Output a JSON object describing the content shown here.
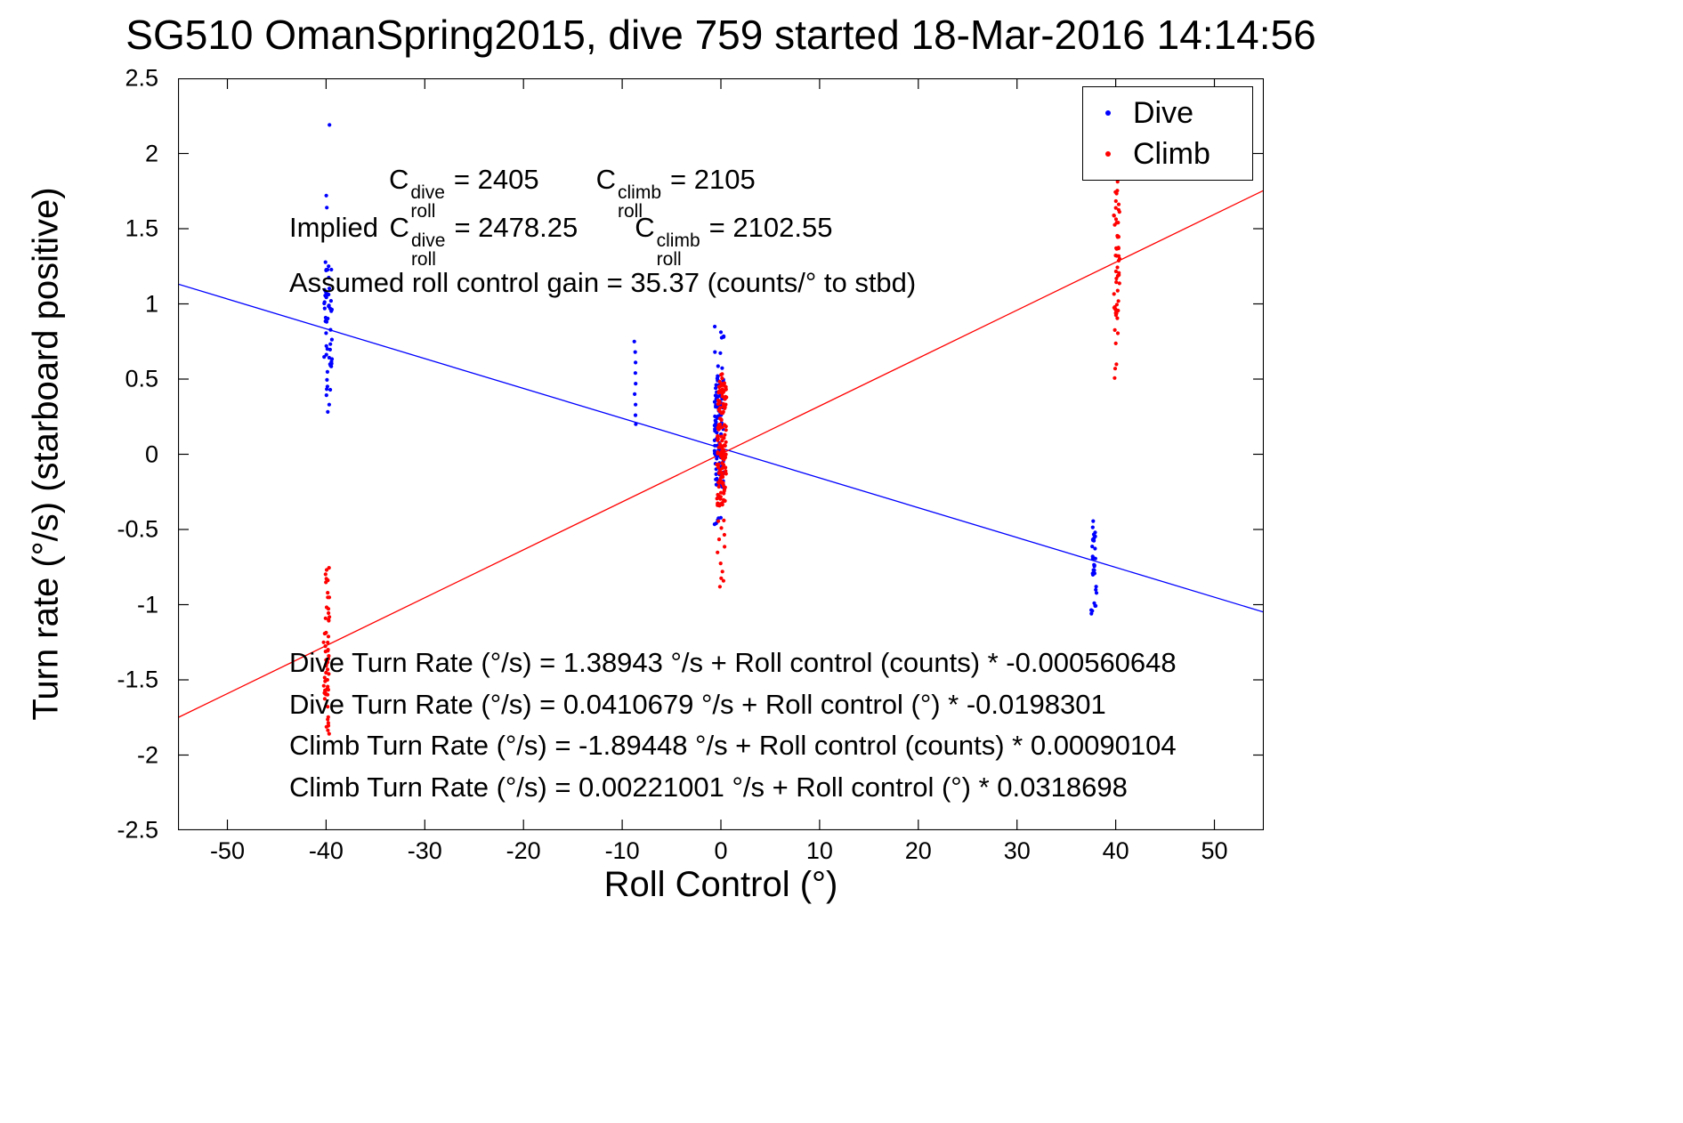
{
  "title": "SG510 OmanSpring2015, dive 759 started 18-Mar-2016 14:14:56",
  "axes": {
    "xlabel": "Roll Control (°)",
    "ylabel": "Turn rate (°/s) (starboard positive)"
  },
  "legend": {
    "items": [
      {
        "label": "Dive",
        "color": "#0000ff"
      },
      {
        "label": "Climb",
        "color": "#ff0000"
      }
    ]
  },
  "annotations": {
    "coeff_line1": {
      "c1": "C",
      "sub1": "roll",
      "sup1": "dive",
      "eq1": "= 2405",
      "c2": "C",
      "sub2": "roll",
      "sup2": "climb",
      "eq2": "= 2105"
    },
    "coeff_line2": {
      "prefix": "Implied ",
      "c1": "C",
      "sub1": "roll",
      "sup1": "dive",
      "eq1": "= 2478.25",
      "c2": "C",
      "sub2": "roll",
      "sup2": "climb",
      "eq2": "= 2102.55"
    },
    "gain_line": "Assumed roll control gain = 35.37 (counts/° to stbd)",
    "fits": [
      "Dive Turn Rate (°/s) = 1.38943 °/s + Roll control (counts) * -0.000560648",
      "Dive Turn Rate (°/s) = 0.0410679 °/s + Roll control (°) * -0.0198301",
      "Climb Turn Rate (°/s) = -1.89448 °/s + Roll control (counts) * 0.00090104",
      "Climb Turn Rate (°/s) = 0.00221001 °/s + Roll control (°) * 0.0318698"
    ]
  },
  "chart_data": {
    "type": "scatter",
    "title": "SG510 OmanSpring2015, dive 759 started 18-Mar-2016 14:14:56",
    "xlabel": "Roll Control (°)",
    "ylabel": "Turn rate (°/s) (starboard positive)",
    "xlim": [
      -55,
      55
    ],
    "ylim": [
      -2.5,
      2.5
    ],
    "xtick_values": [
      -50,
      -40,
      -30,
      -20,
      -10,
      0,
      10,
      20,
      30,
      40,
      50
    ],
    "xtick_labels": [
      "-50",
      "-40",
      "-30",
      "-20",
      "-10",
      "0",
      "10",
      "20",
      "30",
      "40",
      "50"
    ],
    "ytick_values": [
      -2.5,
      -2,
      -1.5,
      -1,
      -0.5,
      0,
      0.5,
      1,
      1.5,
      2,
      2.5
    ],
    "ytick_labels": [
      "-2.5",
      "-2",
      "-1.5",
      "-1",
      "-0.5",
      "0",
      "0.5",
      "1",
      "1.5",
      "2",
      "2.5"
    ],
    "grid": false,
    "legend_position": "top-right",
    "series": [
      {
        "name": "Dive",
        "color": "#0000ff",
        "marker": "dot",
        "clusters": [
          {
            "x": -39.8,
            "sx": 0.3,
            "ys": [
              2.19,
              1.72,
              1.64,
              1.02,
              0.97
            ]
          },
          {
            "x": -39.8,
            "sx": 0.4,
            "n": 42,
            "ymin": 0.55,
            "ymax": 1.28
          },
          {
            "x": -39.8,
            "sx": 0.3,
            "n": 8,
            "ymin": 0.27,
            "ymax": 0.55
          },
          {
            "x": -8.7,
            "sx": 0.08,
            "ys": [
              0.75,
              0.68,
              0.61,
              0.54,
              0.47,
              0.4,
              0.33,
              0.26,
              0.2
            ]
          },
          {
            "x": -0.2,
            "sx": 0.5,
            "n": 32,
            "ymin": -0.5,
            "ymax": 0.85
          },
          {
            "x": -0.2,
            "sx": 0.45,
            "n": 95,
            "ymin": -0.22,
            "ymax": 0.52
          },
          {
            "x": 37.8,
            "sx": 0.3,
            "n": 22,
            "ymin": -1.1,
            "ymax": -0.38
          },
          {
            "x": 37.8,
            "sx": 0.22,
            "n": 12,
            "ymin": -0.85,
            "ymax": -0.55
          }
        ]
      },
      {
        "name": "Climb",
        "color": "#ff0000",
        "marker": "dot",
        "clusters": [
          {
            "x": -39.9,
            "sx": 0.35,
            "n": 42,
            "ymin": -1.6,
            "ymax": -0.95
          },
          {
            "x": -39.9,
            "sx": 0.25,
            "n": 10,
            "ymin": -1.86,
            "ymax": -1.58
          },
          {
            "x": -39.9,
            "sx": 0.2,
            "n": 7,
            "ymin": -0.93,
            "ymax": -0.52
          },
          {
            "x": 0.1,
            "sx": 0.5,
            "n": 42,
            "ymin": -0.95,
            "ymax": 0.6
          },
          {
            "x": 0.1,
            "sx": 0.45,
            "n": 110,
            "ymin": -0.35,
            "ymax": 0.48
          },
          {
            "x": 40.1,
            "sx": 0.3,
            "n": 42,
            "ymin": 0.95,
            "ymax": 1.7
          },
          {
            "x": 40.1,
            "sx": 0.22,
            "n": 10,
            "ymin": 0.45,
            "ymax": 0.95
          },
          {
            "x": 40.1,
            "sx": 0.18,
            "n": 5,
            "ymin": 1.7,
            "ymax": 1.96
          }
        ]
      }
    ],
    "fit_lines": [
      {
        "name": "Dive fit",
        "color": "#0000ff",
        "intercept_deg": 0.0410679,
        "slope_deg": -0.0198301,
        "intercept_counts": 1.38943,
        "slope_counts": -0.000560648
      },
      {
        "name": "Climb fit",
        "color": "#ff0000",
        "intercept_deg": 0.00221001,
        "slope_deg": 0.0318698,
        "intercept_counts": -1.89448,
        "slope_counts": 0.00090104
      }
    ]
  }
}
